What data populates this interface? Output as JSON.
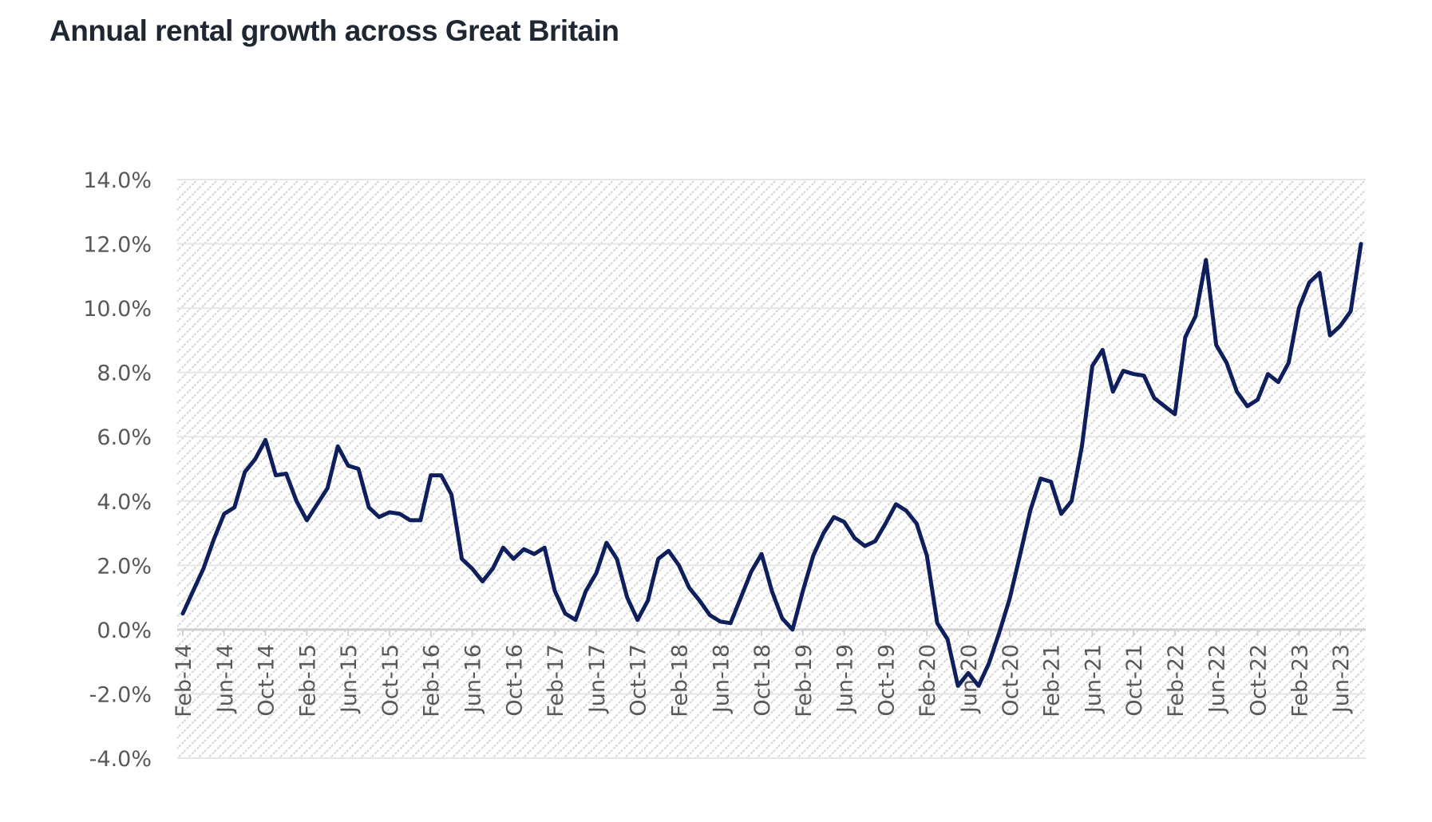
{
  "chart_data": {
    "type": "line",
    "title": "Annual rental growth across Great Britain",
    "xlabel": "",
    "ylabel": "",
    "ylim": [
      -4.0,
      14.0
    ],
    "yticks": [
      "14.0%",
      "12.0%",
      "10.0%",
      "8.0%",
      "6.0%",
      "4.0%",
      "2.0%",
      "0.0%",
      "-2.0%",
      "-4.0%"
    ],
    "ytick_values": [
      14,
      12,
      10,
      8,
      6,
      4,
      2,
      0,
      -2,
      -4
    ],
    "x_start": "Feb-14",
    "x_frequency": "monthly",
    "xtick_labels": [
      "Feb-14",
      "Jun-14",
      "Oct-14",
      "Feb-15",
      "Jun-15",
      "Oct-15",
      "Feb-16",
      "Jun-16",
      "Oct-16",
      "Feb-17",
      "Jun-17",
      "Oct-17",
      "Feb-18",
      "Jun-18",
      "Oct-18",
      "Feb-19",
      "Jun-19",
      "Oct-19",
      "Feb-20",
      "Jun-20",
      "Oct-20",
      "Feb-21",
      "Jun-21",
      "Oct-21",
      "Feb-22",
      "Jun-22",
      "Oct-22",
      "Feb-23",
      "Jun-23"
    ],
    "xtick_interval_months": 4,
    "grid": true,
    "background": "diagonal hatch",
    "series": [
      {
        "name": "Annual rental growth",
        "color": "#0f1f5c",
        "values": [
          0.5,
          1.2,
          1.9,
          2.8,
          3.6,
          3.8,
          4.9,
          5.3,
          5.9,
          4.8,
          4.85,
          4.0,
          3.4,
          3.9,
          4.4,
          5.7,
          5.1,
          5.0,
          3.8,
          3.5,
          3.65,
          3.6,
          3.4,
          3.4,
          4.8,
          4.8,
          4.2,
          2.2,
          1.9,
          1.5,
          1.9,
          2.55,
          2.2,
          2.5,
          2.35,
          2.55,
          1.2,
          0.5,
          0.3,
          1.2,
          1.75,
          2.7,
          2.2,
          1.0,
          0.3,
          0.9,
          2.2,
          2.45,
          2.0,
          1.3,
          0.9,
          0.45,
          0.25,
          0.2,
          1.0,
          1.8,
          2.35,
          1.2,
          0.35,
          0.0,
          1.2,
          2.3,
          3.0,
          3.5,
          3.35,
          2.85,
          2.6,
          2.75,
          3.3,
          3.9,
          3.7,
          3.3,
          2.3,
          0.2,
          -0.3,
          -1.75,
          -1.35,
          -1.75,
          -1.05,
          -0.1,
          0.95,
          2.3,
          3.7,
          4.7,
          4.6,
          3.6,
          4.0,
          5.7,
          8.2,
          8.7,
          7.4,
          8.05,
          7.95,
          7.9,
          7.2,
          6.95,
          6.7,
          9.1,
          9.75,
          11.5,
          8.85,
          8.3,
          7.4,
          6.95,
          7.15,
          7.95,
          7.7,
          8.3,
          10.0,
          10.8,
          11.1,
          9.15,
          9.45,
          9.9,
          12.0
        ]
      }
    ]
  }
}
